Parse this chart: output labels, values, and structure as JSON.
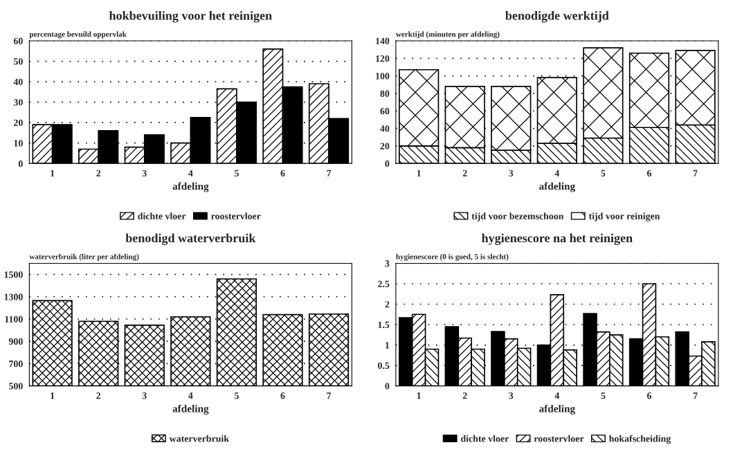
{
  "chart_data": [
    {
      "type": "bar",
      "title": "hokbevuiling voor het reinigen",
      "ylabel": "percentage bevuild oppervlak",
      "xlabel": "afdeling",
      "categories": [
        "1",
        "2",
        "3",
        "4",
        "5",
        "6",
        "7"
      ],
      "series": [
        {
          "name": "dichte vloer",
          "color": "#000000",
          "values": [
            19,
            7,
            8,
            10,
            36.5,
            56,
            39
          ]
        },
        {
          "name": "roostervloer",
          "color": "#000000",
          "values": [
            19,
            16,
            14,
            22.5,
            30,
            37.5,
            22
          ]
        }
      ],
      "ylim": [
        0,
        60
      ],
      "yticks": [
        0,
        10,
        20,
        30,
        40,
        50,
        60
      ],
      "grid": "y",
      "legend": "bottom"
    },
    {
      "type": "bar",
      "title": "benodigde werktijd",
      "ylabel": "werktijd (minuten per afdeling)",
      "xlabel": "afdeling",
      "categories": [
        "1",
        "2",
        "3",
        "4",
        "5",
        "6",
        "7"
      ],
      "stacked": true,
      "series": [
        {
          "name": "tijd voor bezemschoon",
          "color": "#000000",
          "values": [
            20,
            18,
            15,
            23,
            29,
            41,
            44
          ]
        },
        {
          "name": "tijd voor reinigen",
          "color": "#000000",
          "values": [
            87,
            70,
            73,
            75,
            103,
            85,
            85
          ]
        }
      ],
      "ylim": [
        0,
        140
      ],
      "yticks": [
        0,
        20,
        40,
        60,
        80,
        100,
        120,
        140
      ],
      "grid": "y",
      "legend": "bottom"
    },
    {
      "type": "bar",
      "title": "benodigd waterverbruik",
      "ylabel": "waterverbruik (liter per afdeling)",
      "xlabel": "afdeling",
      "categories": [
        "1",
        "2",
        "3",
        "4",
        "5",
        "6",
        "7"
      ],
      "series": [
        {
          "name": "waterverbruik",
          "color": "#000000",
          "values": [
            1265,
            1080,
            1045,
            1120,
            1460,
            1140,
            1145
          ]
        }
      ],
      "ylim": [
        500,
        1600
      ],
      "yticks": [
        500,
        700,
        900,
        1100,
        1300,
        1500
      ],
      "grid": "y",
      "legend": "bottom"
    },
    {
      "type": "bar",
      "title": "hygienescore na het reinigen",
      "ylabel": "hygienescore (0 is goed, 5 is slecht)",
      "xlabel": "afdeling",
      "categories": [
        "1",
        "2",
        "3",
        "4",
        "5",
        "6",
        "7"
      ],
      "series": [
        {
          "name": "dichte vloer",
          "color": "#000000",
          "values": [
            1.67,
            1.45,
            1.33,
            1.0,
            1.77,
            1.15,
            1.32
          ]
        },
        {
          "name": "roostervloer",
          "color": "#000000",
          "values": [
            1.75,
            1.17,
            1.15,
            2.23,
            1.32,
            2.5,
            0.73
          ]
        },
        {
          "name": "hokafscheiding",
          "color": "#000000",
          "values": [
            0.9,
            0.9,
            0.92,
            0.88,
            1.25,
            1.2,
            1.08
          ]
        }
      ],
      "ylim": [
        0,
        3
      ],
      "yticks": [
        0,
        0.5,
        1,
        1.5,
        2,
        2.5,
        3
      ],
      "grid": "y",
      "legend": "bottom"
    }
  ]
}
